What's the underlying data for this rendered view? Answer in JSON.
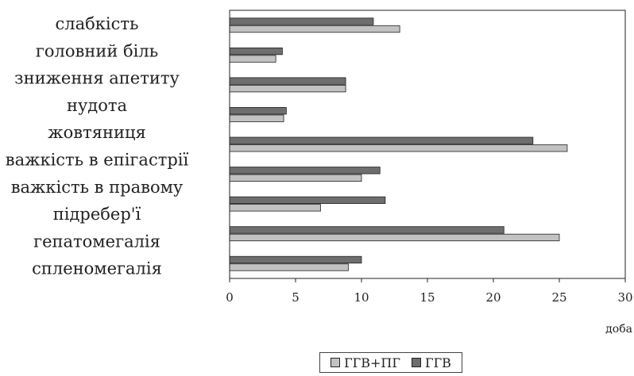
{
  "chart_data": {
    "type": "bar",
    "orientation": "horizontal",
    "categories": [
      "слабкість",
      "головний біль",
      "зниження апетиту",
      "нудота",
      "жовтяниця",
      "важкість в епігастрії",
      "важкість в правому підребер'ї",
      "гепатомегалія",
      "спленомегалія"
    ],
    "category_label_lines": [
      [
        "слабкість"
      ],
      [
        "головний біль"
      ],
      [
        "зниження апетиту"
      ],
      [
        "нудота"
      ],
      [
        "жовтяниця"
      ],
      [
        "важкість в епігастрії"
      ],
      [
        "важкість в правому",
        "підребер'ї"
      ],
      [
        "гепатомегалія"
      ],
      [
        "спленомегалія"
      ]
    ],
    "series": [
      {
        "name": "ГГВ+ПГ",
        "color": "#c2c2c2",
        "values": [
          12.9,
          3.5,
          8.8,
          4.1,
          25.6,
          10.0,
          6.9,
          25.0,
          9.0
        ]
      },
      {
        "name": "ГГВ",
        "color": "#6e6e6e",
        "values": [
          10.9,
          4.0,
          8.8,
          4.3,
          23.0,
          11.4,
          11.8,
          20.8,
          10.0
        ]
      }
    ],
    "xlabel": "доба",
    "xlim": [
      0,
      30
    ],
    "xticks": [
      "0",
      "5",
      "10",
      "15",
      "20",
      "25",
      "30"
    ],
    "grid": false,
    "legend_position": "bottom"
  }
}
